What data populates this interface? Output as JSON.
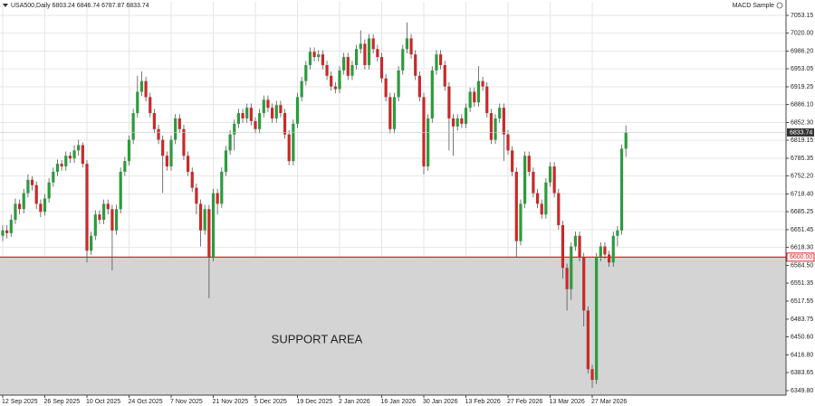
{
  "chart_data": {
    "type": "candlestick",
    "symbol": "USA500,Daily",
    "indicator": "MACD Sample",
    "annotation": "SUPPORT AREA",
    "up_color": "#2e9a3e",
    "down_color": "#c62a2a",
    "categories": [
      "12 Sep 2025",
      null,
      null,
      null,
      null,
      null,
      null,
      null,
      null,
      null,
      "26 Sep 2025",
      null,
      null,
      null,
      null,
      null,
      null,
      null,
      null,
      null,
      "10 Oct 2025",
      null,
      null,
      null,
      null,
      null,
      null,
      null,
      null,
      null,
      "24 Oct 2025",
      null,
      null,
      null,
      null,
      null,
      null,
      null,
      null,
      null,
      "7 Nov 2025",
      null,
      null,
      null,
      null,
      null,
      null,
      null,
      null,
      null,
      "21 Nov 2025",
      null,
      null,
      null,
      null,
      null,
      null,
      null,
      null,
      null,
      "5 Dec 2025",
      null,
      null,
      null,
      null,
      null,
      null,
      null,
      null,
      null,
      "19 Dec 2025",
      null,
      null,
      null,
      null,
      null,
      null,
      null,
      null,
      null,
      "2 Jan 2026",
      null,
      null,
      null,
      null,
      null,
      null,
      null,
      null,
      null,
      "16 Jan 2026",
      null,
      null,
      null,
      null,
      null,
      null,
      null,
      null,
      null,
      "30 Jan 2026",
      null,
      null,
      null,
      null,
      null,
      null,
      null,
      null,
      null,
      "13 Feb 2026",
      null,
      null,
      null,
      null,
      null,
      null,
      null,
      null,
      null,
      "27 Feb 2026",
      null,
      null,
      null,
      null,
      null,
      null,
      null,
      null,
      null,
      "13 Mar 2026",
      null,
      null,
      null,
      null,
      null,
      null,
      null,
      null,
      null,
      "27 Mar 2026",
      null,
      null,
      null,
      null,
      null,
      null,
      null,
      null
    ],
    "open": [
      6640,
      6650,
      6645,
      6670,
      6700,
      6690,
      6720,
      6745,
      6735,
      6700,
      6685,
      6710,
      6740,
      6760,
      6775,
      6770,
      6790,
      6785,
      6800,
      6810,
      6775,
      6612,
      6640,
      6680,
      6670,
      6700,
      6690,
      6650,
      6690,
      6760,
      6780,
      6820,
      6870,
      6910,
      6930,
      6900,
      6870,
      6840,
      6820,
      6790,
      6770,
      6820,
      6860,
      6840,
      6790,
      6760,
      6730,
      6700,
      6650,
      6690,
      6600,
      6720,
      6700,
      6760,
      6800,
      6830,
      6850,
      6870,
      6860,
      6880,
      6855,
      6840,
      6870,
      6895,
      6880,
      6860,
      6885,
      6870,
      6830,
      6780,
      6850,
      6900,
      6930,
      6960,
      6985,
      6975,
      6980,
      6960,
      6940,
      6920,
      6915,
      6950,
      6975,
      6940,
      6960,
      6990,
      7000,
      6960,
      7010,
      6990,
      6975,
      6935,
      6900,
      6840,
      6900,
      6950,
      6990,
      7010,
      6980,
      6940,
      6900,
      6770,
      6860,
      6950,
      6980,
      6960,
      6920,
      6860,
      6845,
      6860,
      6850,
      6880,
      6910,
      6890,
      6930,
      6920,
      6870,
      6820,
      6860,
      6880,
      6830,
      6800,
      6760,
      6630,
      6700,
      6790,
      6760,
      6720,
      6700,
      6680,
      6740,
      6770,
      6720,
      6660,
      6580,
      6540,
      6620,
      6640,
      6600,
      6500,
      6390,
      6370,
      6600,
      6620,
      6605,
      6590,
      6640,
      6650,
      6803.24
    ],
    "high": [
      6660,
      6660,
      6680,
      6710,
      6708,
      6728,
      6755,
      6752,
      6742,
      6708,
      6718,
      6748,
      6768,
      6783,
      6782,
      6798,
      6797,
      6810,
      6820,
      6815,
      6782,
      6648,
      6688,
      6688,
      6708,
      6708,
      6698,
      6698,
      6768,
      6788,
      6828,
      6878,
      6940,
      6948,
      6938,
      6908,
      6878,
      6848,
      6828,
      6798,
      6828,
      6868,
      6868,
      6848,
      6798,
      6768,
      6738,
      6708,
      6698,
      6698,
      6728,
      6728,
      6768,
      6808,
      6838,
      6858,
      6878,
      6878,
      6888,
      6888,
      6862,
      6878,
      6903,
      6903,
      6888,
      6893,
      6893,
      6878,
      6838,
      6858,
      6908,
      6938,
      6968,
      6993,
      6993,
      6988,
      6988,
      6968,
      6948,
      6928,
      6958,
      6983,
      6983,
      6968,
      6998,
      7025,
      7008,
      7018,
      7018,
      6998,
      6983,
      6943,
      6908,
      6908,
      6958,
      6998,
      7040,
      7018,
      6988,
      6948,
      6908,
      6868,
      6958,
      6988,
      6988,
      6968,
      6928,
      6868,
      6868,
      6868,
      6888,
      6918,
      6918,
      6958,
      6938,
      6928,
      6878,
      6868,
      6888,
      6888,
      6838,
      6808,
      6768,
      6708,
      6798,
      6798,
      6768,
      6728,
      6708,
      6748,
      6778,
      6778,
      6728,
      6668,
      6588,
      6628,
      6648,
      6648,
      6608,
      6508,
      6398,
      6608,
      6628,
      6628,
      6612,
      6648,
      6658,
      6811,
      6846.74
    ],
    "low": [
      6630,
      6635,
      6638,
      6662,
      6680,
      6682,
      6712,
      6725,
      6690,
      6675,
      6678,
      6702,
      6732,
      6752,
      6762,
      6762,
      6777,
      6777,
      6790,
      6768,
      6590,
      6604,
      6632,
      6662,
      6662,
      6680,
      6575,
      6642,
      6682,
      6752,
      6772,
      6812,
      6862,
      6902,
      6892,
      6862,
      6832,
      6812,
      6720,
      6762,
      6762,
      6812,
      6832,
      6782,
      6752,
      6722,
      6680,
      6620,
      6642,
      6523,
      6592,
      6680,
      6692,
      6752,
      6792,
      6800,
      6842,
      6852,
      6852,
      6847,
      6832,
      6832,
      6862,
      6872,
      6852,
      6852,
      6862,
      6822,
      6772,
      6772,
      6842,
      6892,
      6922,
      6952,
      6967,
      6967,
      6952,
      6932,
      6912,
      6907,
      6907,
      6942,
      6932,
      6932,
      6952,
      6982,
      6952,
      6952,
      6982,
      6967,
      6927,
      6892,
      6832,
      6832,
      6892,
      6942,
      6982,
      6972,
      6932,
      6892,
      6755,
      6762,
      6852,
      6942,
      6952,
      6912,
      6800,
      6790,
      6837,
      6842,
      6842,
      6872,
      6882,
      6882,
      6912,
      6862,
      6812,
      6812,
      6852,
      6780,
      6792,
      6752,
      6600,
      6622,
      6692,
      6752,
      6712,
      6692,
      6672,
      6672,
      6732,
      6712,
      6652,
      6560,
      6500,
      6520,
      6612,
      6592,
      6470,
      6382,
      6355,
      6362,
      6592,
      6597,
      6582,
      6582,
      6620,
      6642,
      6787.87
    ],
    "close": [
      6650,
      6645,
      6670,
      6700,
      6690,
      6720,
      6745,
      6735,
      6700,
      6685,
      6710,
      6740,
      6760,
      6775,
      6770,
      6790,
      6785,
      6800,
      6810,
      6775,
      6612,
      6640,
      6680,
      6670,
      6700,
      6690,
      6650,
      6690,
      6760,
      6780,
      6820,
      6870,
      6910,
      6930,
      6900,
      6870,
      6840,
      6820,
      6790,
      6770,
      6820,
      6860,
      6840,
      6790,
      6760,
      6730,
      6700,
      6650,
      6690,
      6600,
      6720,
      6700,
      6760,
      6800,
      6830,
      6850,
      6870,
      6860,
      6880,
      6855,
      6840,
      6870,
      6895,
      6880,
      6860,
      6885,
      6870,
      6830,
      6780,
      6850,
      6900,
      6930,
      6960,
      6985,
      6975,
      6980,
      6960,
      6940,
      6920,
      6915,
      6950,
      6975,
      6940,
      6960,
      6990,
      7000,
      6960,
      7010,
      6990,
      6975,
      6935,
      6900,
      6840,
      6900,
      6950,
      6990,
      7010,
      6980,
      6940,
      6900,
      6770,
      6860,
      6950,
      6980,
      6960,
      6920,
      6860,
      6845,
      6860,
      6850,
      6880,
      6910,
      6890,
      6930,
      6920,
      6870,
      6820,
      6860,
      6880,
      6830,
      6800,
      6760,
      6630,
      6700,
      6790,
      6760,
      6720,
      6700,
      6680,
      6740,
      6770,
      6720,
      6660,
      6580,
      6540,
      6620,
      6640,
      6600,
      6500,
      6390,
      6370,
      6600,
      6620,
      6605,
      6590,
      6640,
      6650,
      6803.24,
      6833.74
    ],
    "support": {
      "value": 6600,
      "label": "6600.00"
    },
    "ylim": [
      6341.3,
      7078.6
    ],
    "yticks": [
      {
        "value": 7053.15,
        "label": "7053.15"
      },
      {
        "value": 7020.0,
        "label": "7020.00"
      },
      {
        "value": 6986.2,
        "label": "6986.20"
      },
      {
        "value": 6953.05,
        "label": "6953.05"
      },
      {
        "value": 6919.25,
        "label": "6919.25"
      },
      {
        "value": 6886.1,
        "label": "6886.10"
      },
      {
        "value": 6852.3,
        "label": "6852.30"
      },
      {
        "value": 6819.15,
        "label": "6819.15"
      },
      {
        "value": 6785.35,
        "label": "6785.35"
      },
      {
        "value": 6752.2,
        "label": "6752.20"
      },
      {
        "value": 6718.4,
        "label": "6718.40"
      },
      {
        "value": 6685.25,
        "label": "6685.25"
      },
      {
        "value": 6651.45,
        "label": "6651.45"
      },
      {
        "value": 6618.3,
        "label": "6618.30"
      },
      {
        "value": 6584.5,
        "label": "6584.50"
      },
      {
        "value": 6551.35,
        "label": "6551.35"
      },
      {
        "value": 6517.55,
        "label": "6517.55"
      },
      {
        "value": 6483.75,
        "label": "6483.75"
      },
      {
        "value": 6450.6,
        "label": "6450.60"
      },
      {
        "value": 6416.8,
        "label": "6416.80"
      },
      {
        "value": 6383.65,
        "label": "6383.65"
      },
      {
        "value": 6349.8,
        "label": "6349.80"
      }
    ],
    "grid": true
  }
}
